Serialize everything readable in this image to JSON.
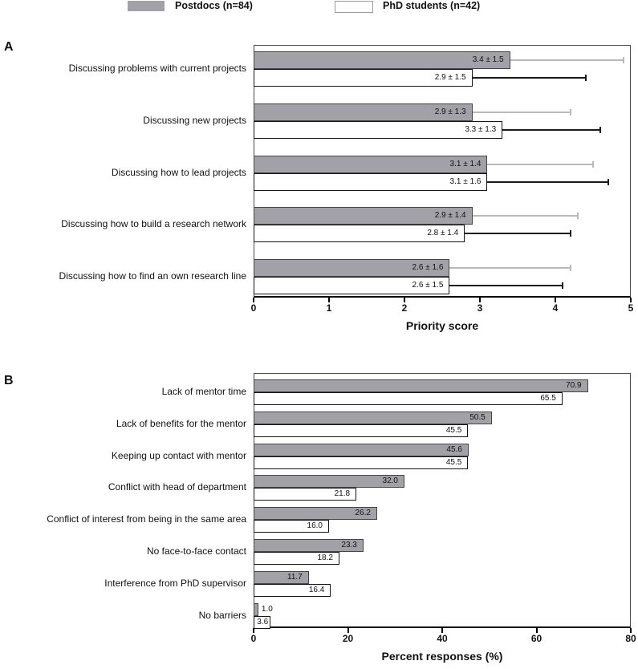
{
  "legend": {
    "postdocs_label": "Postdocs (n=84)",
    "phd_label": "PhD students (n=42)"
  },
  "colors": {
    "postdoc_fill": "#a1a1a7",
    "postdoc_border": "#454545",
    "phd_fill": "#ffffff",
    "phd_border": "#151515",
    "postdoc_error": "#b9b9b9",
    "phd_error": "#1a1a1a"
  },
  "chart_data": [
    {
      "type": "bar",
      "panel_label": "A",
      "orientation": "horizontal",
      "xlabel": "Priority score",
      "xlim": [
        0,
        5
      ],
      "xticks": [
        "0",
        "1",
        "2",
        "3",
        "4",
        "5"
      ],
      "grid": false,
      "categories": [
        "Discussing problems with current projects",
        "Discussing new projects",
        "Discussing how to lead projects",
        "Discussing how to build a research network",
        "Discussing how to find an own research line"
      ],
      "series": [
        {
          "name": "Postdocs (n=84)",
          "values": [
            3.4,
            2.9,
            3.1,
            2.9,
            2.6
          ],
          "sd": [
            1.5,
            1.3,
            1.4,
            1.4,
            1.6
          ],
          "labels": [
            "3.4 ± 1.5",
            "2.9 ± 1.3",
            "3.1 ± 1.4",
            "2.9 ± 1.4",
            "2.6 ± 1.6"
          ]
        },
        {
          "name": "PhD students (n=42)",
          "values": [
            2.9,
            3.3,
            3.1,
            2.8,
            2.6
          ],
          "sd": [
            1.5,
            1.3,
            1.6,
            1.4,
            1.5
          ],
          "labels": [
            "2.9 ± 1.5",
            "3.3 ± 1.3",
            "3.1 ± 1.6",
            "2.8 ± 1.4",
            "2.6 ± 1.5"
          ]
        }
      ]
    },
    {
      "type": "bar",
      "panel_label": "B",
      "orientation": "horizontal",
      "xlabel": "Percent responses (%)",
      "xlim": [
        0,
        80
      ],
      "xticks": [
        "0",
        "20",
        "40",
        "60",
        "80"
      ],
      "grid": false,
      "categories": [
        "Lack of mentor time",
        "Lack of benefits for the mentor",
        "Keeping up contact with mentor",
        "Conflict with head of department",
        "Conflict of interest from being in the same area",
        "No face-to-face contact",
        "Interference from PhD supervisor",
        "No barriers"
      ],
      "series": [
        {
          "name": "Postdocs (n=84)",
          "values": [
            70.9,
            50.5,
            45.6,
            32.0,
            26.2,
            23.3,
            11.7,
            1.0
          ],
          "labels": [
            "70.9",
            "50.5",
            "45.6",
            "32.0",
            "26.2",
            "23.3",
            "11.7",
            "1.0"
          ]
        },
        {
          "name": "PhD students (n=42)",
          "values": [
            65.5,
            45.5,
            45.5,
            21.8,
            16.0,
            18.2,
            16.4,
            3.6
          ],
          "labels": [
            "65.5",
            "45.5",
            "45.5",
            "21.8",
            "16.0",
            "18.2",
            "16.4",
            "3.6"
          ]
        }
      ]
    }
  ]
}
